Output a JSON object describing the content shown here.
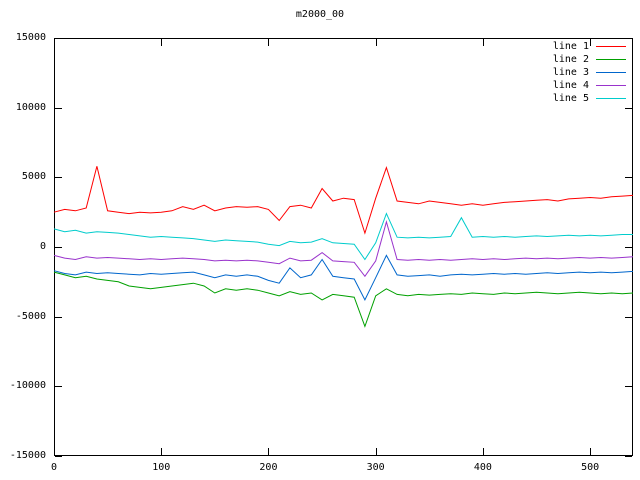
{
  "title": "m2000_00",
  "chart_data": {
    "type": "line",
    "title": "m2000_00",
    "xlabel": "",
    "ylabel": "",
    "xlim": [
      0,
      540
    ],
    "ylim": [
      -15000,
      15000
    ],
    "x_ticks": [
      0,
      100,
      200,
      300,
      400,
      500
    ],
    "y_ticks": [
      -15000,
      -10000,
      -5000,
      0,
      5000,
      10000,
      15000
    ],
    "grid": false,
    "legend_position": "top-right",
    "x": [
      0,
      10,
      20,
      30,
      40,
      50,
      60,
      70,
      80,
      90,
      100,
      110,
      120,
      130,
      140,
      150,
      160,
      170,
      180,
      190,
      200,
      210,
      220,
      230,
      240,
      250,
      260,
      270,
      280,
      290,
      300,
      310,
      320,
      330,
      340,
      350,
      360,
      370,
      380,
      390,
      400,
      410,
      420,
      430,
      440,
      450,
      460,
      470,
      480,
      490,
      500,
      510,
      520,
      530,
      540
    ],
    "series": [
      {
        "name": "line 1",
        "color": "#ff0000",
        "values": [
          2500,
          2700,
          2600,
          2800,
          5800,
          2600,
          2500,
          2400,
          2500,
          2450,
          2500,
          2600,
          2900,
          2700,
          3000,
          2600,
          2800,
          2900,
          2850,
          2900,
          2700,
          1900,
          2900,
          3000,
          2800,
          4200,
          3300,
          3500,
          3400,
          1000,
          3500,
          5700,
          3300,
          3200,
          3100,
          3300,
          3200,
          3100,
          3000,
          3100,
          3000,
          3100,
          3200,
          3250,
          3300,
          3350,
          3400,
          3300,
          3450,
          3500,
          3550,
          3500,
          3600,
          3650,
          3700
        ]
      },
      {
        "name": "line 2",
        "color": "#00a000",
        "values": [
          -1800,
          -2000,
          -2200,
          -2100,
          -2300,
          -2400,
          -2500,
          -2800,
          -2900,
          -3000,
          -2900,
          -2800,
          -2700,
          -2600,
          -2800,
          -3300,
          -3000,
          -3100,
          -3000,
          -3100,
          -3300,
          -3500,
          -3200,
          -3400,
          -3300,
          -3800,
          -3400,
          -3500,
          -3600,
          -5700,
          -3500,
          -3000,
          -3400,
          -3500,
          -3400,
          -3450,
          -3400,
          -3350,
          -3400,
          -3300,
          -3350,
          -3400,
          -3300,
          -3350,
          -3300,
          -3250,
          -3300,
          -3350,
          -3300,
          -3250,
          -3300,
          -3350,
          -3300,
          -3350,
          -3300
        ]
      },
      {
        "name": "line 3",
        "color": "#0066cc",
        "values": [
          -1700,
          -1900,
          -2000,
          -1800,
          -1900,
          -1850,
          -1900,
          -1950,
          -2000,
          -1900,
          -1950,
          -1900,
          -1850,
          -1800,
          -2000,
          -2200,
          -2000,
          -2100,
          -2000,
          -2100,
          -2400,
          -2600,
          -1500,
          -2200,
          -2000,
          -900,
          -2100,
          -2200,
          -2300,
          -3800,
          -2200,
          -600,
          -2000,
          -2100,
          -2050,
          -2000,
          -2100,
          -2000,
          -1950,
          -2000,
          -1950,
          -1900,
          -1950,
          -1900,
          -1950,
          -1900,
          -1850,
          -1900,
          -1850,
          -1800,
          -1850,
          -1800,
          -1850,
          -1800,
          -1750
        ]
      },
      {
        "name": "line 4",
        "color": "#9933cc",
        "values": [
          -600,
          -800,
          -900,
          -700,
          -800,
          -750,
          -800,
          -850,
          -900,
          -850,
          -900,
          -850,
          -800,
          -850,
          -900,
          -1000,
          -950,
          -1000,
          -950,
          -1000,
          -1100,
          -1200,
          -800,
          -1000,
          -950,
          -400,
          -1000,
          -1050,
          -1100,
          -2100,
          -1000,
          1800,
          -900,
          -950,
          -900,
          -950,
          -900,
          -950,
          -900,
          -850,
          -900,
          -850,
          -900,
          -850,
          -800,
          -850,
          -800,
          -850,
          -800,
          -750,
          -800,
          -750,
          -800,
          -750,
          -700
        ]
      },
      {
        "name": "line 5",
        "color": "#00cccc",
        "values": [
          1300,
          1100,
          1200,
          1000,
          1100,
          1050,
          1000,
          900,
          800,
          700,
          750,
          700,
          650,
          600,
          500,
          400,
          500,
          450,
          400,
          350,
          200,
          100,
          400,
          300,
          350,
          600,
          300,
          250,
          200,
          -900,
          300,
          2400,
          700,
          650,
          700,
          650,
          700,
          750,
          2100,
          700,
          750,
          700,
          750,
          700,
          750,
          800,
          750,
          800,
          850,
          800,
          850,
          800,
          850,
          900,
          900
        ]
      }
    ]
  }
}
